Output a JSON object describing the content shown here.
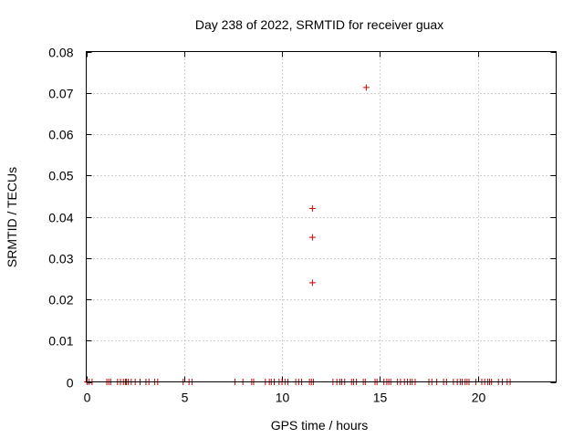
{
  "chart_data": {
    "type": "scatter",
    "title": "Day 238 of 2022, SRMTID for receiver guax",
    "xlabel": "GPS time / hours",
    "ylabel": "SRMTID / TECUs",
    "xlim": [
      0,
      24
    ],
    "ylim": [
      0,
      0.08
    ],
    "grid": true,
    "marker": "+",
    "color": "#cc0000",
    "xticks": [
      0,
      5,
      10,
      15,
      20
    ],
    "xtick_labels": [
      "0",
      "5",
      "10",
      "15",
      "20"
    ],
    "yticks": [
      0,
      0.01,
      0.02,
      0.03,
      0.04,
      0.05,
      0.06,
      0.07,
      0.08
    ],
    "ytick_labels": [
      "0",
      "0.01",
      "0.02",
      "0.03",
      "0.04",
      "0.05",
      "0.06",
      "0.07",
      "0.08"
    ],
    "series": [
      {
        "name": "SRMTID",
        "points": [
          [
            0.05,
            0
          ],
          [
            0.15,
            0
          ],
          [
            0.3,
            0
          ],
          [
            1.05,
            0
          ],
          [
            1.15,
            0
          ],
          [
            1.25,
            0
          ],
          [
            1.6,
            0
          ],
          [
            1.75,
            0
          ],
          [
            1.9,
            0
          ],
          [
            2.0,
            0
          ],
          [
            2.05,
            0
          ],
          [
            2.15,
            0
          ],
          [
            2.3,
            0
          ],
          [
            2.5,
            0
          ],
          [
            2.75,
            0
          ],
          [
            3.05,
            0
          ],
          [
            3.2,
            0
          ],
          [
            3.5,
            0
          ],
          [
            3.65,
            0
          ],
          [
            4.95,
            0
          ],
          [
            5.25,
            0
          ],
          [
            5.4,
            0
          ],
          [
            7.6,
            0
          ],
          [
            8.0,
            0
          ],
          [
            8.45,
            0
          ],
          [
            8.55,
            0
          ],
          [
            9.15,
            0
          ],
          [
            9.35,
            0
          ],
          [
            9.45,
            0
          ],
          [
            9.6,
            0
          ],
          [
            9.85,
            0
          ],
          [
            10.0,
            0
          ],
          [
            10.15,
            0
          ],
          [
            10.3,
            0
          ],
          [
            10.7,
            0
          ],
          [
            10.85,
            0
          ],
          [
            11.0,
            0
          ],
          [
            11.4,
            0
          ],
          [
            11.5,
            0
          ],
          [
            11.6,
            0
          ],
          [
            12.6,
            0
          ],
          [
            12.8,
            0
          ],
          [
            12.95,
            0
          ],
          [
            13.05,
            0
          ],
          [
            13.2,
            0
          ],
          [
            13.55,
            0
          ],
          [
            13.65,
            0
          ],
          [
            13.8,
            0
          ],
          [
            14.15,
            0
          ],
          [
            14.25,
            0
          ],
          [
            14.75,
            0
          ],
          [
            14.85,
            0
          ],
          [
            15.2,
            0
          ],
          [
            15.35,
            0
          ],
          [
            15.45,
            0
          ],
          [
            15.55,
            0
          ],
          [
            15.9,
            0
          ],
          [
            16.05,
            0
          ],
          [
            16.25,
            0
          ],
          [
            16.4,
            0
          ],
          [
            16.55,
            0
          ],
          [
            16.65,
            0
          ],
          [
            16.8,
            0
          ],
          [
            17.5,
            0
          ],
          [
            17.65,
            0
          ],
          [
            17.9,
            0
          ],
          [
            18.25,
            0
          ],
          [
            18.4,
            0
          ],
          [
            18.75,
            0
          ],
          [
            18.95,
            0
          ],
          [
            19.1,
            0
          ],
          [
            19.2,
            0
          ],
          [
            19.35,
            0
          ],
          [
            19.45,
            0
          ],
          [
            19.55,
            0
          ],
          [
            19.9,
            0
          ],
          [
            20.2,
            0
          ],
          [
            20.35,
            0
          ],
          [
            20.5,
            0
          ],
          [
            20.6,
            0
          ],
          [
            20.7,
            0
          ],
          [
            21.05,
            0
          ],
          [
            21.25,
            0
          ],
          [
            21.5,
            0
          ],
          [
            21.65,
            0
          ],
          [
            11.55,
            0.024
          ],
          [
            11.55,
            0.035
          ],
          [
            11.55,
            0.042
          ],
          [
            14.3,
            0.0713
          ]
        ]
      }
    ]
  }
}
